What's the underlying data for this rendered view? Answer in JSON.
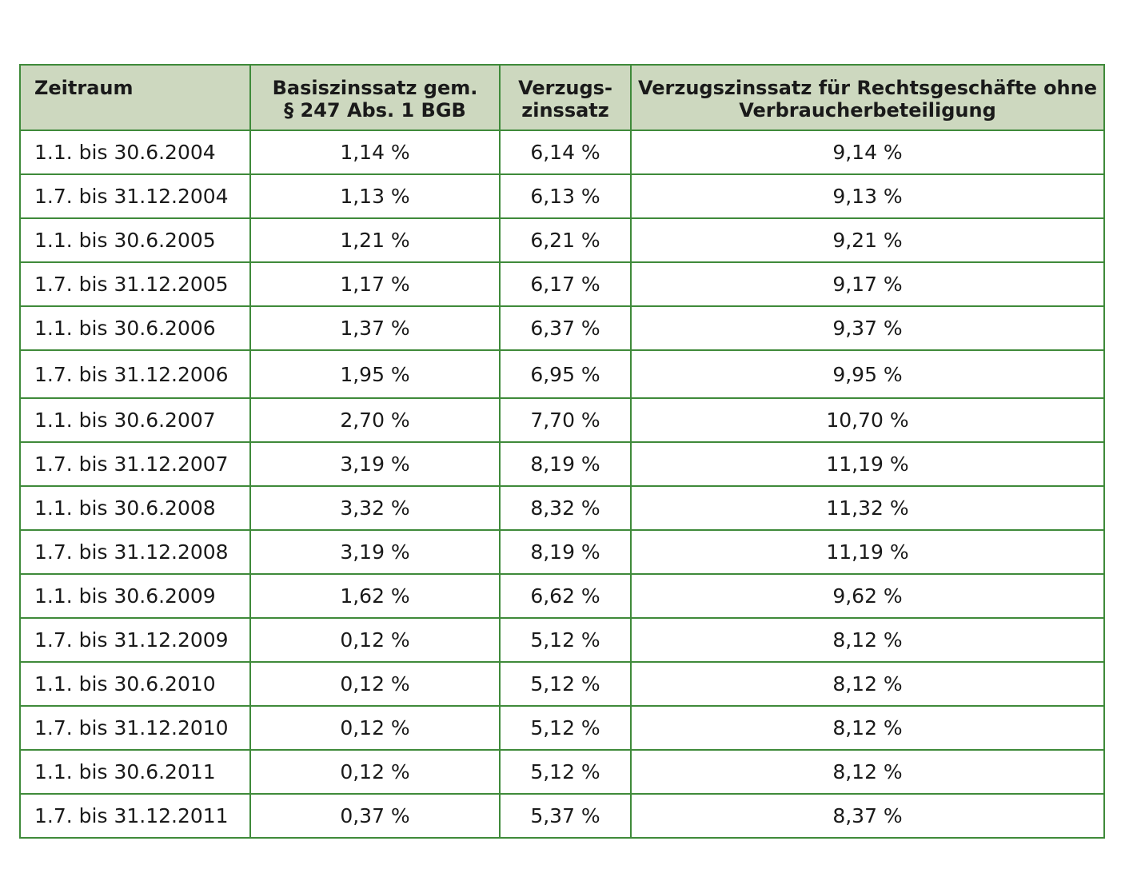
{
  "table": {
    "headers": [
      {
        "lines": [
          "Zeitraum"
        ]
      },
      {
        "lines": [
          "Basiszinssatz gem.",
          "§ 247 Abs. 1 BGB"
        ]
      },
      {
        "lines": [
          "Verzugs-",
          "zinssatz"
        ]
      },
      {
        "lines": [
          "Verzugszinssatz für Rechtsgeschäfte ohne",
          "Verbraucherbeteiligung"
        ]
      }
    ],
    "rows": [
      [
        "1.1. bis 30.6.2004",
        "1,14 %",
        "6,14 %",
        "9,14 %"
      ],
      [
        "1.7. bis 31.12.2004",
        "1,13 %",
        "6,13 %",
        "9,13 %"
      ],
      [
        "1.1. bis 30.6.2005",
        "1,21 %",
        "6,21 %",
        "9,21 %"
      ],
      [
        "1.7. bis 31.12.2005",
        "1,17 %",
        "6,17 %",
        "9,17 %"
      ],
      [
        "1.1. bis 30.6.2006",
        "1,37 %",
        "6,37 %",
        "9,37 %"
      ],
      [
        "1.7. bis 31.12.2006",
        "1,95 %",
        "6,95 %",
        "9,95 %"
      ],
      [
        "1.1. bis 30.6.2007",
        "2,70 %",
        "7,70 %",
        "10,70 %"
      ],
      [
        "1.7. bis 31.12.2007",
        "3,19 %",
        "8,19 %",
        "11,19 %"
      ],
      [
        "1.1. bis 30.6.2008",
        "3,32 %",
        "8,32 %",
        "11,32 %"
      ],
      [
        "1.7. bis 31.12.2008",
        "3,19 %",
        "8,19 %",
        "11,19 %"
      ],
      [
        "1.1. bis 30.6.2009",
        "1,62 %",
        "6,62 %",
        "9,62 %"
      ],
      [
        "1.7. bis 31.12.2009",
        "0,12 %",
        "5,12 %",
        "8,12 %"
      ],
      [
        "1.1. bis 30.6.2010",
        "0,12 %",
        "5,12 %",
        "8,12 %"
      ],
      [
        "1.7. bis 31.12.2010",
        "0,12 %",
        "5,12 %",
        "8,12 %"
      ],
      [
        "1.1. bis 30.6.2011",
        "0,12 %",
        "5,12 %",
        "8,12 %"
      ],
      [
        "1.7. bis 31.12.2011",
        "0,37 %",
        "5,37 %",
        "8,37 %"
      ]
    ]
  },
  "colors": {
    "border": "#3f8a3a",
    "header_background": "#cdd8bf"
  }
}
